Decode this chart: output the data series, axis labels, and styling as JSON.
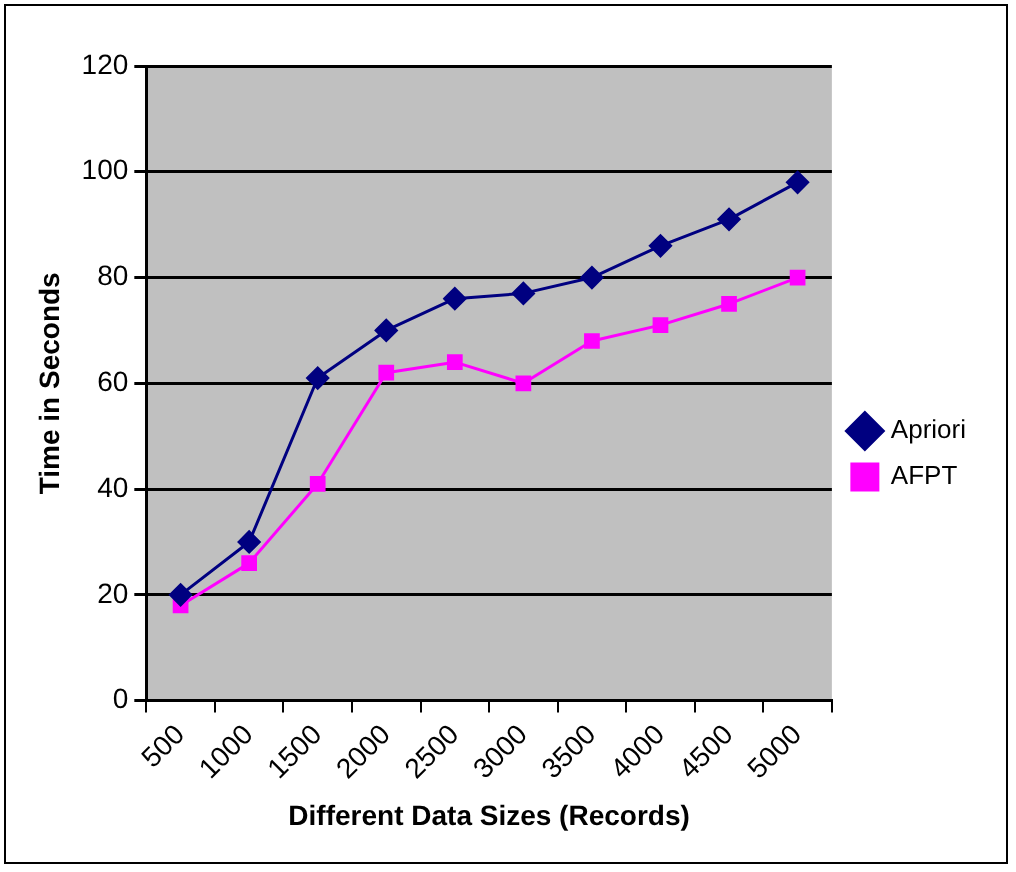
{
  "chart_data": {
    "type": "line",
    "xlabel": "Different Data Sizes (Records)",
    "ylabel": "Time in Seconds",
    "categories": [
      "500",
      "1000",
      "1500",
      "2000",
      "2500",
      "3000",
      "3500",
      "4000",
      "4500",
      "5000"
    ],
    "series": [
      {
        "name": "Apriori",
        "color": "#000080",
        "marker": "diamond",
        "values": [
          20,
          30,
          61,
          70,
          76,
          77,
          80,
          86,
          91,
          98
        ]
      },
      {
        "name": "AFPT",
        "color": "#ff00ff",
        "marker": "square",
        "values": [
          18,
          26,
          41,
          62,
          64,
          60,
          68,
          71,
          75,
          80
        ]
      }
    ],
    "ylim": [
      0,
      120
    ],
    "yticks": [
      0,
      20,
      40,
      60,
      80,
      100,
      120
    ],
    "grid": "y",
    "legend": "right"
  }
}
